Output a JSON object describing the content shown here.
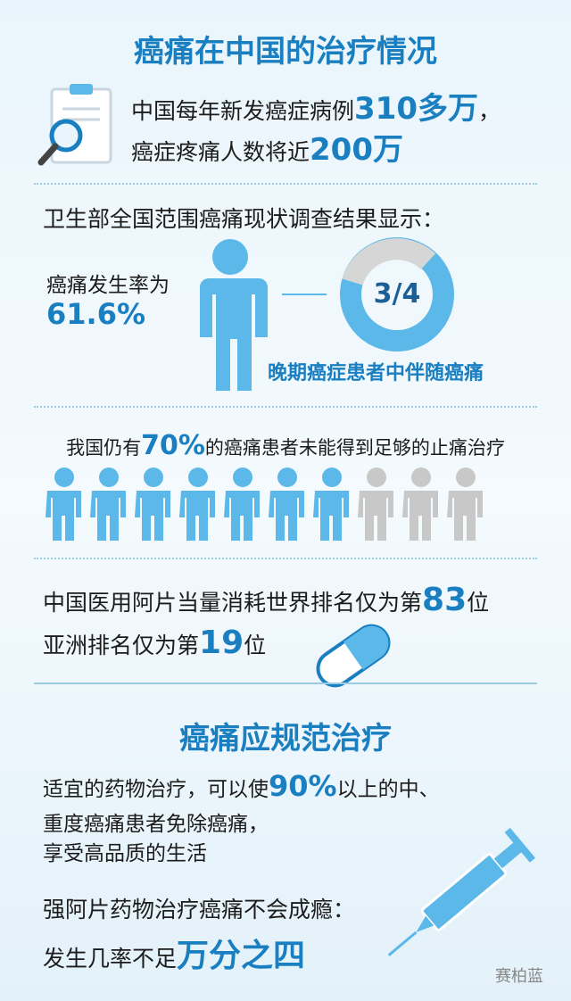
{
  "section1": {
    "title": "癌痛在中国的治疗情况",
    "line1": {
      "text": "中国每年新发癌症病例",
      "highlight": "310多万",
      "suffix": "，"
    },
    "line2": {
      "text": "癌症疼痛人数将近",
      "highlight": "200万"
    }
  },
  "survey": {
    "heading": "卫生部全国范围癌痛现状调查结果显示：",
    "incidence_label": "癌痛发生率为",
    "incidence_value": "61.6%",
    "ratio": "3/4",
    "ratio_caption": "晚期癌症患者中伴随癌痛"
  },
  "undertreated": {
    "prefix": "我国仍有",
    "highlight": "70%",
    "suffix": "的癌痛患者未能得到足够的止痛治疗"
  },
  "opioid": {
    "line1": {
      "text": "中国医用阿片当量消耗世界排名仅为第",
      "highlight": "83",
      "suffix": "位"
    },
    "line2": {
      "text": "亚洲排名仅为第",
      "highlight": "19",
      "suffix": "位"
    }
  },
  "section2": {
    "title": "癌痛应规范治疗",
    "para1": {
      "prefix": "适宜的药物治疗，可以使",
      "highlight": "90%",
      "suffix": "以上的中、",
      "line2": "重度癌痛患者免除癌痛，",
      "line3": "享受高品质的生活"
    },
    "para2": {
      "line1": "强阿片药物治疗癌痛不会成瘾：",
      "prefix": "发生几率不足",
      "highlight": "万分之四"
    }
  },
  "watermark": "赛柏蓝"
}
